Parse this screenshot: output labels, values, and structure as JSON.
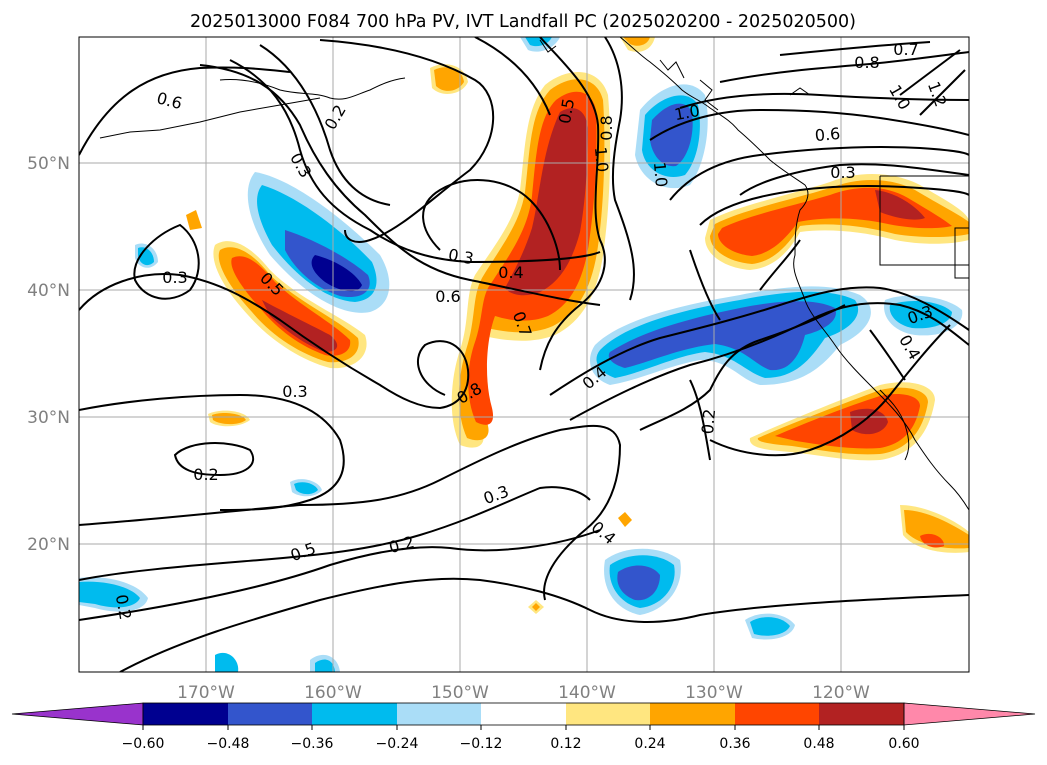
{
  "title": "2025013000 F084 700 hPa PV, IVT Landfall PC (2025020200 - 2025020500)",
  "map": {
    "lon_ticks": [
      "170°W",
      "160°W",
      "150°W",
      "140°W",
      "130°W",
      "120°W"
    ],
    "lat_ticks": [
      "50°N",
      "40°N",
      "30°N",
      "20°N"
    ],
    "grid": true,
    "contour_labels": [
      "0.6",
      "0.2",
      "0.3",
      "0.3",
      "0.5",
      "0.3",
      "0.2",
      "0.5",
      "0.2",
      "0.3",
      "0.6",
      "0.4",
      "0.7",
      "0.8",
      "0.3",
      "0.4",
      "0.2",
      "0.4",
      "0.5",
      "0.8",
      "1.0",
      "1.0",
      "1.0",
      "0.7",
      "0.8",
      "1.0",
      "1.2",
      "0.6",
      "0.3",
      "0.3",
      "0.4",
      "0.2"
    ]
  },
  "colorbar": {
    "ticks": [
      "−0.60",
      "−0.48",
      "−0.36",
      "−0.24",
      "−0.12",
      "0.12",
      "0.24",
      "0.36",
      "0.48",
      "0.60"
    ],
    "colors": [
      "#9933cc",
      "#000090",
      "#3355cc",
      "#00bbee",
      "#aaddf7",
      "#ffffff",
      "#ffe680",
      "#ffa500",
      "#ff4500",
      "#b22222",
      "#ff88aa"
    ],
    "extend": "both"
  },
  "colors": {
    "grid": "#aaaaaa",
    "contour": "#000000"
  }
}
